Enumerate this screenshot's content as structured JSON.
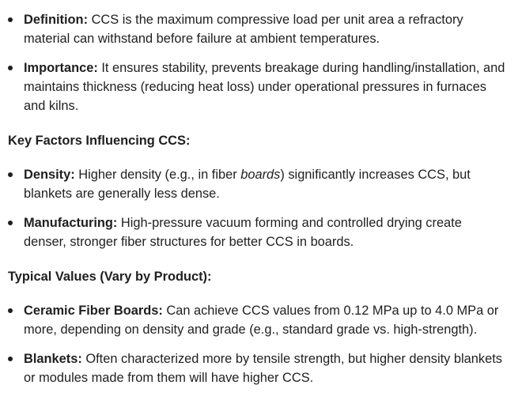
{
  "intro_list": [
    {
      "label": "Definition:",
      "text": " CCS is the maximum compressive load per unit area a refractory material can withstand before failure at ambient temperatures."
    },
    {
      "label": "Importance:",
      "text": " It ensures stability, prevents breakage during handling/installation, and maintains thickness (reducing heat loss) under operational pressures in furnaces and kilns."
    }
  ],
  "factors": {
    "heading": "Key Factors Influencing CCS:",
    "items": [
      {
        "label": "Density:",
        "text_before": " Higher density (e.g., in fiber ",
        "italic": "boards",
        "text_after": ") significantly increases CCS, but blankets are generally less dense."
      },
      {
        "label": "Manufacturing:",
        "text": " High-pressure vacuum forming and controlled drying create denser, stronger fiber structures for better CCS in boards."
      }
    ]
  },
  "values": {
    "heading": "Typical Values (Vary by Product):",
    "items": [
      {
        "label": "Ceramic Fiber Boards:",
        "text": " Can achieve CCS values from 0.12 MPa up to 4.0 MPa or more, depending on density and grade (e.g., standard grade vs. high-strength)."
      },
      {
        "label": "Blankets:",
        "text": " Often characterized more by tensile strength, but higher density blankets or modules made from them will have higher CCS."
      }
    ]
  }
}
